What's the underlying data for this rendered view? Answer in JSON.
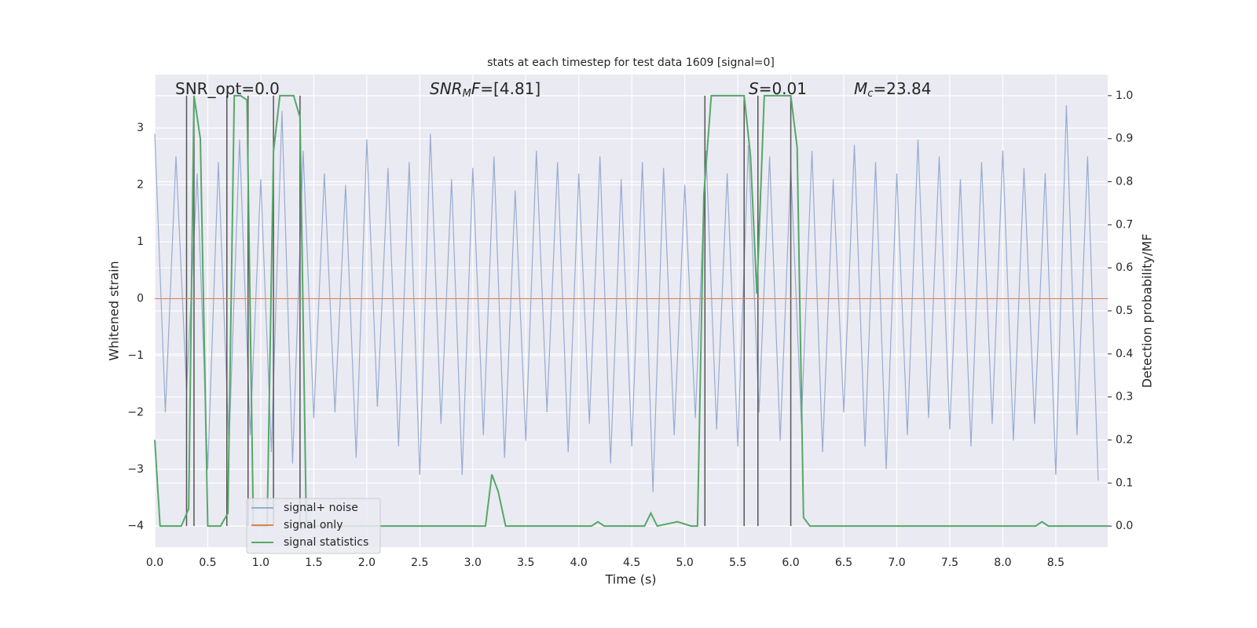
{
  "chart_data": {
    "type": "line",
    "title": "stats at each timestep for test data 1609 [signal=0]",
    "xlabel": "Time (s)",
    "ylabel": "Whitened strain",
    "y2label": "Detection probability/MF",
    "xlim": [
      0,
      8.99
    ],
    "ylim": [
      -4.37,
      3.94
    ],
    "y2lim": [
      -0.049,
      1.049
    ],
    "xticks": [
      {
        "value": 0,
        "label": "0.0"
      },
      0.5,
      {
        "value": 1,
        "label": "1.0"
      },
      1.5,
      {
        "value": 2,
        "label": "2.0"
      },
      2.5,
      {
        "value": 3,
        "label": "3.0"
      },
      3.5,
      {
        "value": 4,
        "label": "4.0"
      },
      4.5,
      {
        "value": 5,
        "label": "5.0"
      },
      5.5,
      {
        "value": 6,
        "label": "6.0"
      },
      6.5,
      {
        "value": 7,
        "label": "7.0"
      },
      7.5,
      {
        "value": 8,
        "label": "8.0"
      },
      8.5
    ],
    "yticks": [
      {
        "value": -4,
        "label": "−4"
      },
      {
        "value": -3,
        "label": "−3"
      },
      {
        "value": -2,
        "label": "−2"
      },
      {
        "value": -1,
        "label": "−1"
      },
      0,
      1,
      2,
      3
    ],
    "y2ticks": [
      {
        "value": 0,
        "label": "0.0"
      },
      0.1,
      0.2,
      0.3,
      0.4,
      0.5,
      0.6,
      0.7,
      0.8,
      0.9,
      {
        "value": 1,
        "label": "1.0"
      }
    ],
    "grid": true,
    "legend": "lower left",
    "series": [
      {
        "name": "signal+ noise",
        "color": "#98acd1",
        "axis": "y",
        "x": [
          0.0,
          0.1,
          0.2,
          0.3,
          0.4,
          0.5,
          0.6,
          0.7,
          0.8,
          0.9,
          1.0,
          1.1,
          1.2,
          1.3,
          1.4,
          1.5,
          1.6,
          1.7,
          1.8,
          1.9,
          2.0,
          2.1,
          2.2,
          2.3,
          2.4,
          2.5,
          2.6,
          2.7,
          2.8,
          2.9,
          3.0,
          3.1,
          3.2,
          3.3,
          3.4,
          3.5,
          3.6,
          3.7,
          3.8,
          3.9,
          4.0,
          4.1,
          4.2,
          4.3,
          4.4,
          4.5,
          4.6,
          4.7,
          4.8,
          4.9,
          5.0,
          5.1,
          5.2,
          5.3,
          5.4,
          5.5,
          5.6,
          5.7,
          5.8,
          5.9,
          6.0,
          6.1,
          6.2,
          6.3,
          6.4,
          6.5,
          6.6,
          6.7,
          6.8,
          6.9,
          7.0,
          7.1,
          7.2,
          7.3,
          7.4,
          7.5,
          7.6,
          7.7,
          7.8,
          7.9,
          8.0,
          8.1,
          8.2,
          8.3,
          8.4,
          8.5,
          8.6,
          8.7,
          8.8,
          8.9
        ],
        "values": [
          2.9,
          -2.0,
          2.5,
          -1.6,
          2.2,
          -3.0,
          2.4,
          -2.6,
          2.8,
          -2.4,
          2.1,
          -2.7,
          3.3,
          -2.9,
          2.6,
          -2.1,
          2.2,
          -2.0,
          2.0,
          -2.8,
          2.8,
          -1.9,
          2.3,
          -2.6,
          2.4,
          -3.1,
          2.9,
          -2.2,
          2.1,
          -3.1,
          2.3,
          -2.4,
          2.5,
          -2.8,
          1.9,
          -2.5,
          2.6,
          -2.0,
          2.4,
          -2.7,
          2.2,
          -2.2,
          2.5,
          -2.9,
          2.1,
          -2.6,
          2.4,
          -3.4,
          2.3,
          -2.4,
          2.0,
          -2.1,
          2.6,
          -2.3,
          2.2,
          -2.6,
          2.7,
          -2.0,
          2.5,
          -2.5,
          2.3,
          -2.2,
          2.6,
          -2.7,
          2.1,
          -2.0,
          2.7,
          -2.6,
          2.4,
          -3.0,
          2.2,
          -2.4,
          2.8,
          -2.1,
          2.5,
          -2.3,
          2.1,
          -2.6,
          2.4,
          -2.2,
          2.6,
          -2.5,
          2.3,
          -2.2,
          2.2,
          -3.1,
          3.4,
          -2.4,
          2.5,
          -3.2
        ]
      },
      {
        "name": "signal only",
        "color": "#dd8452",
        "axis": "y",
        "x": [
          0,
          8.99
        ],
        "values": [
          0,
          0
        ]
      },
      {
        "name": "signal statistics",
        "color": "#55a868",
        "axis": "y2",
        "x": [
          0.0,
          0.05,
          0.25,
          0.32,
          0.37,
          0.43,
          0.5,
          0.62,
          0.69,
          0.75,
          0.81,
          0.87,
          0.93,
          1.06,
          1.12,
          1.18,
          1.31,
          1.37,
          1.43,
          2.43,
          2.5,
          3.12,
          3.18,
          3.24,
          3.31,
          4.12,
          4.18,
          4.24,
          4.62,
          4.68,
          4.74,
          4.93,
          5.06,
          5.12,
          5.18,
          5.25,
          5.56,
          5.62,
          5.68,
          5.75,
          6.0,
          6.06,
          6.12,
          6.18,
          8.31,
          8.37,
          8.43,
          8.99
        ],
        "values": [
          0.2,
          0.0,
          0.0,
          0.04,
          1.0,
          0.9,
          0.0,
          0.0,
          0.03,
          1.0,
          1.0,
          0.99,
          0.0,
          0.0,
          0.87,
          1.0,
          1.0,
          0.95,
          0.0,
          0.0,
          0.0,
          0.0,
          0.12,
          0.08,
          0.0,
          0.0,
          0.01,
          0.0,
          0.0,
          0.03,
          0.0,
          0.01,
          0.0,
          0.0,
          0.77,
          1.0,
          1.0,
          0.86,
          0.54,
          1.0,
          1.0,
          0.88,
          0.02,
          0.0,
          0.0,
          0.01,
          0.0,
          0.0
        ]
      }
    ],
    "vlines": {
      "color": "#555555",
      "x": [
        0.3,
        0.37,
        0.68,
        0.88,
        1.12,
        1.37,
        5.19,
        5.56,
        5.69,
        6.0
      ]
    },
    "annotations": [
      {
        "parts": [
          {
            "text": "SNR_opt=0.0",
            "style": "plain"
          }
        ]
      },
      {
        "parts": [
          {
            "text": "SNR",
            "style": "italic"
          },
          {
            "text": "M",
            "style": "sub"
          },
          {
            "text": "F",
            "style": "italic"
          },
          {
            "text": "=[4.81]",
            "style": "plain"
          }
        ]
      },
      {
        "parts": [
          {
            "text": "S",
            "style": "italic"
          },
          {
            "text": "=0.01",
            "style": "plain"
          }
        ]
      },
      {
        "parts": [
          {
            "text": "M",
            "style": "italic"
          },
          {
            "text": "c",
            "style": "sub"
          },
          {
            "text": "=23.84",
            "style": "plain"
          }
        ]
      }
    ]
  }
}
